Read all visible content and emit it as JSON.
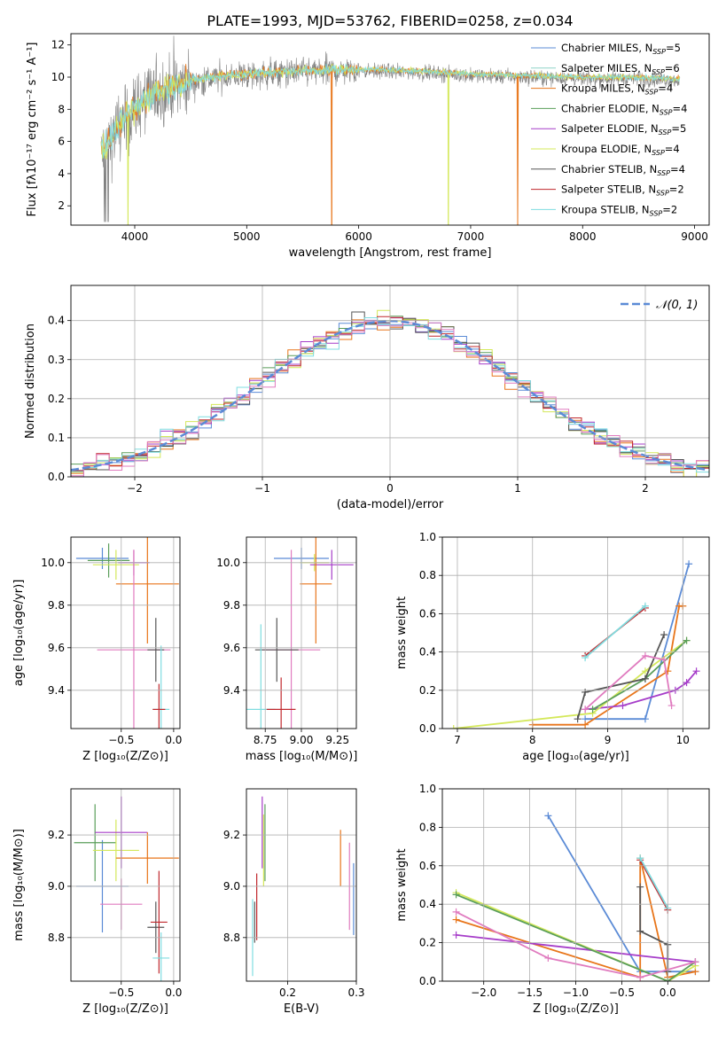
{
  "title": "PLATE=1993, MJD=53762, FIBERID=0258, z=0.034",
  "colors": {
    "chabrier_miles": "#5b8bd6",
    "salpeter_miles": "#8dd3c7",
    "kroupa_miles": "#e8751a",
    "chabrier_elodie": "#5a9e5a",
    "salpeter_elodie": "#a63dc9",
    "kroupa_elodie": "#d4e85a",
    "chabrier_stelib": "#555555",
    "salpeter_stelib": "#c0282d",
    "kroupa_stelib": "#7fdde0",
    "pink": "#e07bbf",
    "gray_spectrum": "#808080"
  },
  "chart_data": [
    {
      "id": "spectrum",
      "type": "line",
      "title": "PLATE=1993, MJD=53762, FIBERID=0258, z=0.034",
      "xlabel": "wavelength [Angstrom, rest frame]",
      "ylabel": "Flux [fλ10⁻¹⁷ erg cm⁻² s⁻¹ A⁻¹]",
      "xlim": [
        3430,
        9130
      ],
      "ylim": [
        0.8,
        12.7
      ],
      "xticks": [
        4000,
        5000,
        6000,
        7000,
        8000,
        9000
      ],
      "yticks": [
        2,
        4,
        6,
        8,
        10,
        12
      ],
      "continuum_x": [
        3700,
        3800,
        3900,
        4000,
        4100,
        4200,
        4400,
        4600,
        4800,
        5000,
        5200,
        5500,
        6000,
        6500,
        7000,
        7500,
        8000,
        8500,
        8850
      ],
      "continuum_y": [
        5.2,
        6.3,
        7.2,
        8.0,
        8.6,
        9.0,
        9.5,
        9.8,
        10.0,
        10.1,
        10.2,
        10.3,
        10.4,
        10.3,
        10.1,
        10.0,
        9.9,
        9.9,
        9.8
      ],
      "legend": [
        {
          "label": "Chabrier MILES, N",
          "sub": "SSP",
          "val": "=5",
          "color": "chabrier_miles"
        },
        {
          "label": "Salpeter MILES, N",
          "sub": "SSP",
          "val": "=6",
          "color": "salpeter_miles"
        },
        {
          "label": "Kroupa MILES, N",
          "sub": "SSP",
          "val": "=4",
          "color": "kroupa_miles"
        },
        {
          "label": "Chabrier ELODIE, N",
          "sub": "SSP",
          "val": "=4",
          "color": "chabrier_elodie"
        },
        {
          "label": "Salpeter ELODIE, N",
          "sub": "SSP",
          "val": "=5",
          "color": "salpeter_elodie"
        },
        {
          "label": "Kroupa ELODIE, N",
          "sub": "SSP",
          "val": "=4",
          "color": "kroupa_elodie"
        },
        {
          "label": "Chabrier STELIB, N",
          "sub": "SSP",
          "val": "=4",
          "color": "chabrier_stelib"
        },
        {
          "label": "Salpeter STELIB, N",
          "sub": "SSP",
          "val": "=2",
          "color": "salpeter_stelib"
        },
        {
          "label": "Kroupa STELIB, N",
          "sub": "SSP",
          "val": "=2",
          "color": "kroupa_stelib"
        }
      ]
    },
    {
      "id": "residuals",
      "type": "histogram",
      "xlabel": "(data-model)/error",
      "ylabel": "Normed distribution",
      "xlim": [
        -2.5,
        2.5
      ],
      "ylim": [
        0,
        0.49
      ],
      "xticks": [
        -2,
        -1,
        0,
        1,
        2
      ],
      "yticks": [
        0.0,
        0.1,
        0.2,
        0.3,
        0.4
      ],
      "legend": "𝒩(0, 1)",
      "gaussian_color": "chabrier_miles",
      "series_colors": [
        "chabrier_miles",
        "kroupa_miles",
        "chabrier_elodie",
        "salpeter_elodie",
        "kroupa_elodie",
        "chabrier_stelib",
        "salpeter_stelib",
        "kroupa_stelib",
        "pink"
      ]
    },
    {
      "id": "age_vs_Z",
      "type": "errorbar",
      "xlabel": "Z [log₁₀(Z/Z⊙)]",
      "ylabel": "age  [log₁₀(age/yr)]",
      "xlim": [
        -0.98,
        0.06
      ],
      "ylim": [
        9.22,
        10.12
      ],
      "xticks": [
        -0.5,
        0.0
      ],
      "xticklabels": [
        "−0.5",
        "0.0"
      ],
      "yticks": [
        9.4,
        9.6,
        9.8,
        10.0
      ],
      "points": [
        {
          "x": -0.68,
          "y": 10.02,
          "xerr": 0.25,
          "yerr": 0.05,
          "color": "chabrier_miles"
        },
        {
          "x": -0.62,
          "y": 10.01,
          "xerr": 0.2,
          "yerr": 0.08,
          "color": "chabrier_elodie"
        },
        {
          "x": -0.55,
          "y": 9.99,
          "xerr": 0.22,
          "yerr": 0.07,
          "color": "kroupa_elodie"
        },
        {
          "x": -0.38,
          "y": 10.0,
          "xerr": 0.15,
          "yerr": 0.06,
          "color": "salpeter_elodie"
        },
        {
          "x": -0.25,
          "y": 9.9,
          "xerr": 0.3,
          "yerr": 0.28,
          "color": "kroupa_miles"
        },
        {
          "x": -0.38,
          "y": 9.59,
          "xerr": 0.35,
          "yerr": 0.47,
          "color": "pink"
        },
        {
          "x": -0.17,
          "y": 9.59,
          "xerr": 0.08,
          "yerr": 0.15,
          "color": "chabrier_stelib"
        },
        {
          "x": -0.12,
          "y": 9.31,
          "xerr": 0.08,
          "yerr": 0.3,
          "color": "kroupa_stelib"
        },
        {
          "x": -0.14,
          "y": 9.31,
          "xerr": 0.06,
          "yerr": 0.12,
          "color": "salpeter_stelib"
        }
      ]
    },
    {
      "id": "age_vs_mass",
      "type": "errorbar",
      "xlabel": "mass [log₁₀(M/M⊙)]",
      "ylabel": "",
      "xlim": [
        8.62,
        9.38
      ],
      "ylim": [
        9.22,
        10.12
      ],
      "xticks": [
        8.75,
        9.0,
        9.25
      ],
      "xticklabels": [
        "8.75",
        "9.00",
        "9.25"
      ],
      "yticks": [
        9.4,
        9.6,
        9.8,
        10.0
      ],
      "points": [
        {
          "x": 9.0,
          "y": 10.02,
          "xerr": 0.19,
          "yerr": 0.05,
          "color": "chabrier_miles"
        },
        {
          "x": 9.09,
          "y": 10.0,
          "xerr": 0.1,
          "yerr": 0.04,
          "color": "kroupa_elodie"
        },
        {
          "x": 9.21,
          "y": 9.99,
          "xerr": 0.15,
          "yerr": 0.07,
          "color": "salpeter_elodie"
        },
        {
          "x": 9.1,
          "y": 9.9,
          "xerr": 0.11,
          "yerr": 0.28,
          "color": "kroupa_miles"
        },
        {
          "x": 8.93,
          "y": 9.59,
          "xerr": 0.2,
          "yerr": 0.47,
          "color": "pink"
        },
        {
          "x": 8.83,
          "y": 9.59,
          "xerr": 0.15,
          "yerr": 0.15,
          "color": "chabrier_stelib"
        },
        {
          "x": 8.72,
          "y": 9.31,
          "xerr": 0.1,
          "yerr": 0.4,
          "color": "kroupa_stelib"
        },
        {
          "x": 8.86,
          "y": 9.31,
          "xerr": 0.1,
          "yerr": 0.15,
          "color": "salpeter_stelib"
        }
      ]
    },
    {
      "id": "weight_vs_age",
      "type": "line",
      "xlabel": "age  [log₁₀(age/yr)]",
      "ylabel": "mass weight",
      "xlim": [
        6.8,
        10.35
      ],
      "ylim": [
        0,
        1
      ],
      "xticks": [
        7,
        8,
        9,
        10
      ],
      "yticks": [
        0.0,
        0.2,
        0.4,
        0.6,
        0.8,
        1.0
      ],
      "series": [
        {
          "color": "chabrier_miles",
          "x": [
            8.7,
            9.5,
            10.08
          ],
          "y": [
            0.05,
            0.05,
            0.86
          ]
        },
        {
          "color": "kroupa_miles",
          "x": [
            8.0,
            8.7,
            9.8,
            9.95,
            10.0
          ],
          "y": [
            0.02,
            0.02,
            0.3,
            0.64,
            0.64
          ]
        },
        {
          "color": "salpeter_elodie",
          "x": [
            8.7,
            9.2,
            9.9,
            10.05,
            10.18
          ],
          "y": [
            0.1,
            0.12,
            0.2,
            0.24,
            0.3
          ]
        },
        {
          "color": "kroupa_elodie",
          "x": [
            6.95,
            8.8,
            9.5,
            10.05
          ],
          "y": [
            0.0,
            0.08,
            0.3,
            0.46
          ]
        },
        {
          "color": "chabrier_elodie",
          "x": [
            8.8,
            9.5,
            10.05
          ],
          "y": [
            0.1,
            0.26,
            0.46
          ]
        },
        {
          "color": "chabrier_stelib",
          "x": [
            8.6,
            8.7,
            9.5,
            9.75
          ],
          "y": [
            0.05,
            0.19,
            0.26,
            0.49
          ]
        },
        {
          "color": "pink",
          "x": [
            8.7,
            9.5,
            9.75,
            9.85
          ],
          "y": [
            0.1,
            0.38,
            0.36,
            0.12
          ]
        },
        {
          "color": "salpeter_stelib",
          "x": [
            8.7,
            9.5
          ],
          "y": [
            0.38,
            0.63
          ]
        },
        {
          "color": "kroupa_stelib",
          "x": [
            8.7,
            9.5
          ],
          "y": [
            0.37,
            0.64
          ]
        }
      ]
    },
    {
      "id": "mass_vs_Z",
      "type": "errorbar",
      "xlabel": "Z [log₁₀(Z/Z⊙)]",
      "ylabel": "mass [log₁₀(M/M⊙)]",
      "xlim": [
        -0.98,
        0.06
      ],
      "ylim": [
        8.63,
        9.38
      ],
      "xticks": [
        -0.5,
        0.0
      ],
      "xticklabels": [
        "−0.5",
        "0.0"
      ],
      "yticks": [
        8.8,
        9.0,
        9.2
      ],
      "points": [
        {
          "x": -0.68,
          "y": 9.0,
          "xerr": 0.25,
          "yerr": 0.18,
          "color": "chabrier_miles"
        },
        {
          "x": -0.75,
          "y": 9.17,
          "xerr": 0.2,
          "yerr": 0.15,
          "color": "chabrier_elodie"
        },
        {
          "x": -0.55,
          "y": 9.14,
          "xerr": 0.22,
          "yerr": 0.12,
          "color": "kroupa_elodie"
        },
        {
          "x": -0.5,
          "y": 9.21,
          "xerr": 0.25,
          "yerr": 0.14,
          "color": "salpeter_elodie"
        },
        {
          "x": -0.25,
          "y": 9.11,
          "xerr": 0.3,
          "yerr": 0.1,
          "color": "kroupa_miles"
        },
        {
          "x": -0.5,
          "y": 8.93,
          "xerr": 0.2,
          "yerr": 0.1,
          "color": "pink"
        },
        {
          "x": -0.17,
          "y": 8.84,
          "xerr": 0.08,
          "yerr": 0.1,
          "color": "chabrier_stelib"
        },
        {
          "x": -0.14,
          "y": 8.86,
          "xerr": 0.08,
          "yerr": 0.2,
          "color": "salpeter_stelib"
        },
        {
          "x": -0.12,
          "y": 8.72,
          "xerr": 0.08,
          "yerr": 0.1,
          "color": "kroupa_stelib"
        }
      ]
    },
    {
      "id": "mass_vs_ebv",
      "type": "errorbar",
      "xlabel": "E(B-V)",
      "ylabel": "",
      "xlim": [
        0.14,
        0.3
      ],
      "ylim": [
        8.63,
        9.38
      ],
      "xticks": [
        0.2,
        0.3
      ],
      "xticklabels": [
        "0.2",
        "0.3"
      ],
      "yticks": [
        8.8,
        9.0,
        9.2
      ],
      "points": [
        {
          "x": 0.149,
          "y": 8.8,
          "yerr": 0.15,
          "color": "kroupa_stelib"
        },
        {
          "x": 0.152,
          "y": 8.86,
          "yerr": 0.08,
          "color": "chabrier_stelib"
        },
        {
          "x": 0.155,
          "y": 8.92,
          "yerr": 0.13,
          "color": "salpeter_stelib"
        },
        {
          "x": 0.163,
          "y": 9.21,
          "yerr": 0.14,
          "color": "salpeter_elodie"
        },
        {
          "x": 0.165,
          "y": 9.14,
          "yerr": 0.14,
          "color": "kroupa_elodie"
        },
        {
          "x": 0.167,
          "y": 9.17,
          "yerr": 0.15,
          "color": "chabrier_elodie"
        },
        {
          "x": 0.277,
          "y": 9.11,
          "yerr": 0.11,
          "color": "kroupa_miles"
        },
        {
          "x": 0.29,
          "y": 9.0,
          "yerr": 0.17,
          "color": "pink"
        },
        {
          "x": 0.296,
          "y": 8.95,
          "yerr": 0.14,
          "color": "chabrier_miles"
        }
      ]
    },
    {
      "id": "weight_vs_Z",
      "type": "line",
      "xlabel": "Z [log₁₀(Z/Z⊙)]",
      "ylabel": "mass weight",
      "xlim": [
        -2.45,
        0.45
      ],
      "ylim": [
        0,
        1
      ],
      "xticks": [
        -2.0,
        -1.5,
        -1.0,
        -0.5,
        0.0
      ],
      "xticklabels": [
        "−2.0",
        "−1.5",
        "−1.0",
        "−0.5",
        "0.0"
      ],
      "yticks": [
        0.0,
        0.2,
        0.4,
        0.6,
        0.8,
        1.0
      ],
      "series": [
        {
          "color": "chabrier_miles",
          "x": [
            -1.3,
            -0.3,
            0.3
          ],
          "y": [
            0.86,
            0.05,
            0.05
          ]
        },
        {
          "color": "kroupa_miles",
          "x": [
            -2.3,
            -0.3,
            -0.3,
            0.0,
            0.3
          ],
          "y": [
            0.32,
            0.02,
            0.64,
            0.02,
            0.05
          ]
        },
        {
          "color": "salpeter_elodie",
          "x": [
            -2.3,
            0.3
          ],
          "y": [
            0.24,
            0.1
          ]
        },
        {
          "color": "kroupa_elodie",
          "x": [
            -2.3,
            0.0,
            0.3
          ],
          "y": [
            0.46,
            0.0,
            0.08
          ]
        },
        {
          "color": "chabrier_elodie",
          "x": [
            -2.3,
            0.0,
            0.3
          ],
          "y": [
            0.45,
            0.0,
            0.1
          ]
        },
        {
          "color": "chabrier_stelib",
          "x": [
            -0.3,
            -0.3,
            0.0,
            0.0
          ],
          "y": [
            0.49,
            0.26,
            0.19,
            0.05
          ]
        },
        {
          "color": "pink",
          "x": [
            -2.3,
            -1.3,
            -0.3,
            0.3
          ],
          "y": [
            0.36,
            0.12,
            0.02,
            0.1
          ]
        },
        {
          "color": "salpeter_stelib",
          "x": [
            -0.3,
            0.0
          ],
          "y": [
            0.63,
            0.37
          ]
        },
        {
          "color": "kroupa_stelib",
          "x": [
            -0.3,
            0.0
          ],
          "y": [
            0.64,
            0.38
          ]
        }
      ]
    }
  ]
}
